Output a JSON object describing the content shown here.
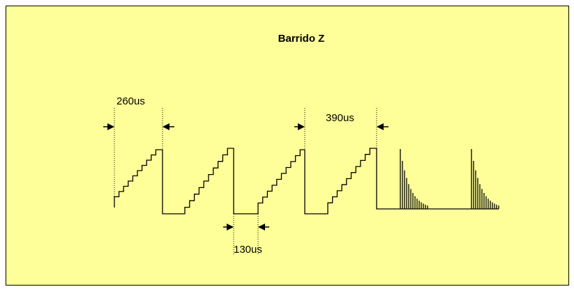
{
  "title": "Barrido Z",
  "annotations": [
    "260us",
    "390us",
    "130us"
  ]
}
